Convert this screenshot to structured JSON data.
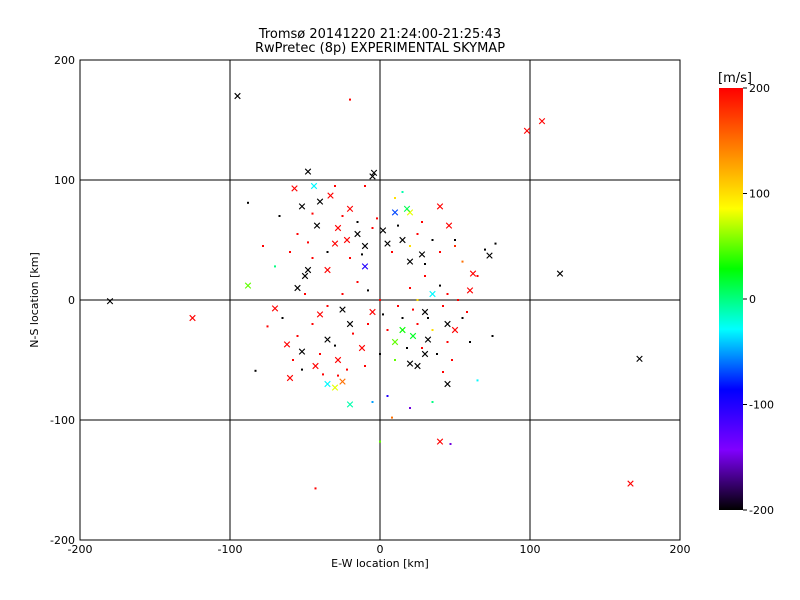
{
  "chart_data": {
    "type": "scatter",
    "title": "Tromsø 20141220 21:24:00-21:25:43",
    "subtitle": "RwPretec (8p) EXPERIMENTAL SKYMAP",
    "xlabel": "E-W location [km]",
    "ylabel": "N-S location [km]",
    "xlim": [
      -200,
      200
    ],
    "ylim": [
      -200,
      200
    ],
    "xticks": [
      "-200",
      "-100",
      "0",
      "100",
      "200"
    ],
    "yticks": [
      "-200",
      "-100",
      "0",
      "100",
      "200"
    ],
    "grid": true,
    "colorbar": {
      "label": "[m/s]",
      "range": [
        -200,
        200
      ],
      "ticks": [
        "200",
        "100",
        "0",
        "-100",
        "-200"
      ],
      "colors": [
        "#ff0000",
        "#ff8000",
        "#ffff00",
        "#00ff00",
        "#00ffff",
        "#0000ff",
        "#8000ff",
        "#000000"
      ]
    },
    "series": [
      {
        "marker": "x",
        "points": [
          [
            -95,
            170,
            -200
          ],
          [
            -48,
            107,
            -200
          ],
          [
            -5,
            103,
            -200
          ],
          [
            -4,
            106,
            -200
          ],
          [
            98,
            141,
            200
          ],
          [
            108,
            149,
            200
          ],
          [
            120,
            22,
            -200
          ],
          [
            173,
            -49,
            -200
          ],
          [
            -180,
            -1,
            -200
          ],
          [
            -125,
            -15,
            200
          ],
          [
            -88,
            12,
            50
          ],
          [
            167,
            -153,
            200
          ],
          [
            40,
            -118,
            200
          ],
          [
            -44,
            95,
            -30
          ],
          [
            -57,
            93,
            200
          ],
          [
            -52,
            78,
            -200
          ],
          [
            -40,
            82,
            -200
          ],
          [
            -33,
            87,
            200
          ],
          [
            -20,
            76,
            200
          ],
          [
            10,
            73,
            -70
          ],
          [
            20,
            73,
            80
          ],
          [
            18,
            76,
            10
          ],
          [
            40,
            78,
            200
          ],
          [
            46,
            62,
            200
          ],
          [
            73,
            37,
            -200
          ],
          [
            -62,
            -37,
            200
          ],
          [
            -60,
            -65,
            200
          ],
          [
            -52,
            -43,
            -200
          ],
          [
            -70,
            -7,
            200
          ],
          [
            -35,
            -33,
            -200
          ],
          [
            -43,
            -55,
            200
          ],
          [
            -30,
            -73,
            80
          ],
          [
            -25,
            -68,
            150
          ],
          [
            -20,
            -87,
            -10
          ],
          [
            -35,
            -70,
            -30
          ],
          [
            20,
            -53,
            -200
          ],
          [
            25,
            -55,
            -200
          ],
          [
            45,
            -70,
            -200
          ],
          [
            30,
            -45,
            -200
          ],
          [
            32,
            -33,
            -200
          ],
          [
            45,
            -20,
            -200
          ],
          [
            50,
            -25,
            200
          ],
          [
            60,
            8,
            200
          ],
          [
            62,
            22,
            200
          ],
          [
            -50,
            20,
            -200
          ],
          [
            -48,
            25,
            -200
          ],
          [
            -55,
            10,
            -200
          ],
          [
            -30,
            47,
            200
          ],
          [
            -10,
            45,
            -200
          ],
          [
            5,
            47,
            -200
          ],
          [
            15,
            50,
            -200
          ],
          [
            -28,
            60,
            200
          ],
          [
            -15,
            55,
            -200
          ],
          [
            -10,
            28,
            -100
          ],
          [
            -22,
            50,
            200
          ],
          [
            -35,
            25,
            200
          ],
          [
            -20,
            -20,
            -200
          ],
          [
            -5,
            -10,
            200
          ],
          [
            15,
            -25,
            30
          ],
          [
            10,
            -35,
            50
          ],
          [
            22,
            -30,
            20
          ],
          [
            30,
            -10,
            -200
          ],
          [
            35,
            5,
            -30
          ],
          [
            -12,
            -40,
            200
          ],
          [
            -28,
            -50,
            200
          ],
          [
            -40,
            -12,
            200
          ],
          [
            -25,
            -8,
            -200
          ],
          [
            -42,
            62,
            -200
          ],
          [
            2,
            58,
            -200
          ],
          [
            28,
            38,
            -200
          ],
          [
            20,
            32,
            -200
          ]
        ]
      },
      {
        "marker": "dot",
        "points": [
          [
            -20,
            167,
            200
          ],
          [
            -88,
            81,
            -200
          ],
          [
            -67,
            70,
            -200
          ],
          [
            -83,
            -59,
            -200
          ],
          [
            -43,
            -157,
            200
          ],
          [
            -28,
            -63,
            200
          ],
          [
            5,
            -80,
            -100
          ],
          [
            8,
            -98,
            150
          ],
          [
            0,
            -118,
            50
          ],
          [
            -5,
            -85,
            -50
          ],
          [
            20,
            -90,
            -150
          ],
          [
            47,
            -120,
            -150
          ],
          [
            65,
            -67,
            -30
          ],
          [
            75,
            -30,
            -200
          ],
          [
            70,
            42,
            -200
          ],
          [
            77,
            47,
            -200
          ],
          [
            65,
            20,
            200
          ],
          [
            55,
            32,
            150
          ],
          [
            50,
            45,
            180
          ],
          [
            60,
            -35,
            -200
          ],
          [
            55,
            -15,
            -200
          ],
          [
            42,
            -60,
            200
          ],
          [
            35,
            -85,
            0
          ],
          [
            -70,
            28,
            0
          ],
          [
            -60,
            40,
            200
          ],
          [
            -75,
            -22,
            200
          ],
          [
            -78,
            45,
            200
          ],
          [
            -55,
            55,
            200
          ],
          [
            10,
            85,
            100
          ],
          [
            15,
            90,
            -10
          ],
          [
            -10,
            95,
            200
          ],
          [
            -30,
            95,
            200
          ],
          [
            -45,
            72,
            200
          ],
          [
            30,
            20,
            200
          ],
          [
            40,
            12,
            -200
          ],
          [
            45,
            5,
            200
          ],
          [
            25,
            0,
            100
          ],
          [
            20,
            10,
            200
          ],
          [
            0,
            0,
            200
          ],
          [
            -8,
            8,
            -200
          ],
          [
            -15,
            15,
            200
          ],
          [
            -25,
            5,
            200
          ],
          [
            -35,
            -5,
            200
          ],
          [
            -45,
            -20,
            200
          ],
          [
            -55,
            -30,
            200
          ],
          [
            -10,
            -55,
            200
          ],
          [
            0,
            -45,
            -200
          ],
          [
            10,
            -50,
            50
          ],
          [
            5,
            -25,
            200
          ],
          [
            15,
            -15,
            -200
          ],
          [
            25,
            -20,
            200
          ],
          [
            35,
            -25,
            100
          ],
          [
            45,
            -35,
            200
          ],
          [
            30,
            30,
            -200
          ],
          [
            40,
            40,
            200
          ],
          [
            50,
            50,
            -200
          ],
          [
            20,
            45,
            100
          ],
          [
            25,
            55,
            200
          ],
          [
            -5,
            60,
            200
          ],
          [
            -15,
            65,
            -200
          ],
          [
            -25,
            70,
            200
          ],
          [
            -35,
            40,
            -200
          ],
          [
            -45,
            35,
            200
          ],
          [
            -50,
            5,
            200
          ],
          [
            -65,
            -15,
            -200
          ],
          [
            -40,
            -45,
            200
          ],
          [
            -30,
            -38,
            -200
          ],
          [
            -18,
            -28,
            200
          ],
          [
            -8,
            -20,
            200
          ],
          [
            2,
            -12,
            -200
          ],
          [
            12,
            -5,
            200
          ],
          [
            22,
            -8,
            200
          ],
          [
            32,
            -15,
            -200
          ],
          [
            42,
            -5,
            200
          ],
          [
            52,
            0,
            200
          ],
          [
            58,
            -10,
            200
          ],
          [
            18,
            -40,
            -200
          ],
          [
            28,
            -40,
            200
          ],
          [
            38,
            -45,
            -200
          ],
          [
            48,
            -50,
            200
          ],
          [
            -20,
            35,
            200
          ],
          [
            -12,
            38,
            -200
          ],
          [
            8,
            40,
            200
          ],
          [
            12,
            62,
            -200
          ],
          [
            28,
            65,
            200
          ],
          [
            35,
            50,
            -200
          ],
          [
            -2,
            68,
            200
          ],
          [
            -48,
            48,
            200
          ],
          [
            -58,
            -50,
            200
          ],
          [
            -52,
            -58,
            -200
          ],
          [
            -38,
            -62,
            200
          ],
          [
            -22,
            -58,
            200
          ]
        ]
      }
    ]
  }
}
